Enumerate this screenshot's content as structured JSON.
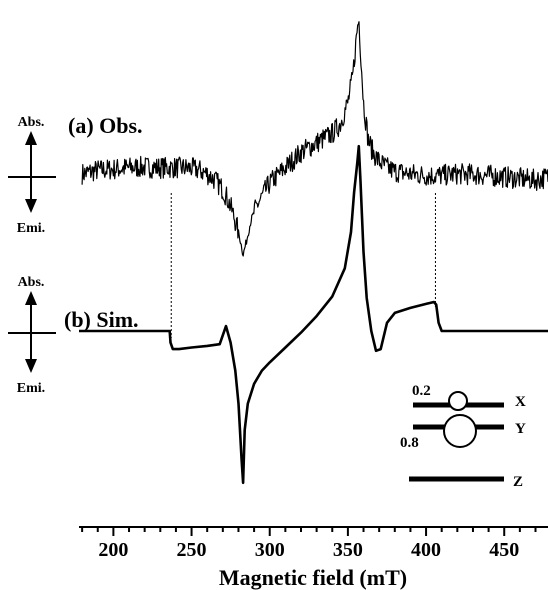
{
  "chart_data": {
    "type": "line",
    "xlabel": "Magnetic field (mT)",
    "xlim": [
      178,
      478
    ],
    "xticks": [
      200,
      250,
      300,
      350,
      400,
      450
    ],
    "ylabel": "",
    "grid": false,
    "series": [
      {
        "name": "(a) Obs.",
        "x": [
          180,
          190,
          200,
          210,
          220,
          230,
          240,
          250,
          255,
          260,
          265,
          270,
          273,
          276,
          279,
          281,
          283,
          285,
          288,
          292,
          300,
          310,
          320,
          330,
          340,
          345,
          350,
          353,
          356,
          357,
          358,
          360,
          363,
          366,
          370,
          375,
          380,
          390,
          400,
          410,
          420,
          430,
          440,
          450,
          460,
          470,
          478
        ],
        "y": [
          0.1,
          0.22,
          0.25,
          0.3,
          0.32,
          0.3,
          0.3,
          0.28,
          0.22,
          0.1,
          -0.1,
          -0.4,
          -0.7,
          -1.1,
          -1.6,
          -2.0,
          -2.5,
          -2.1,
          -1.4,
          -0.9,
          -0.2,
          0.3,
          0.8,
          1.1,
          1.4,
          1.7,
          2.4,
          3.2,
          4.8,
          5.1,
          4.2,
          2.4,
          1.2,
          0.8,
          0.5,
          0.3,
          0.18,
          0.1,
          0.05,
          0.05,
          0.1,
          0.08,
          0.05,
          0.0,
          -0.05,
          -0.1,
          0.0
        ]
      },
      {
        "name": "(b) Sim.",
        "x": [
          178,
          236,
          236.5,
          238,
          242,
          250,
          260,
          268,
          272,
          275,
          278,
          280,
          282,
          283,
          284,
          286,
          290,
          295,
          300,
          310,
          320,
          330,
          340,
          348,
          352,
          354,
          356,
          357,
          358,
          360,
          362,
          365,
          368,
          371,
          375,
          380,
          390,
          400,
          405,
          406.5,
          408,
          410,
          478
        ],
        "y": [
          0,
          0,
          -0.35,
          -0.55,
          -0.55,
          -0.5,
          -0.45,
          -0.4,
          0.15,
          -0.35,
          -1.2,
          -2.2,
          -3.9,
          -4.6,
          -3.0,
          -2.2,
          -1.6,
          -1.2,
          -0.95,
          -0.5,
          -0.05,
          0.45,
          1.05,
          1.9,
          3.0,
          4.2,
          5.1,
          5.6,
          4.6,
          2.4,
          1.0,
          0.0,
          -0.6,
          -0.55,
          0.25,
          0.55,
          0.7,
          0.82,
          0.88,
          0.8,
          0.25,
          0,
          0
        ]
      }
    ],
    "vertical_guides_x": [
      237,
      406
    ],
    "side_labels": {
      "abs": "Abs.",
      "emi": "Emi."
    },
    "inset": {
      "x_label": "X",
      "y_label": "Y",
      "z_label": "Z",
      "pop_upper": "0.2",
      "pop_lower": "0.8"
    }
  }
}
